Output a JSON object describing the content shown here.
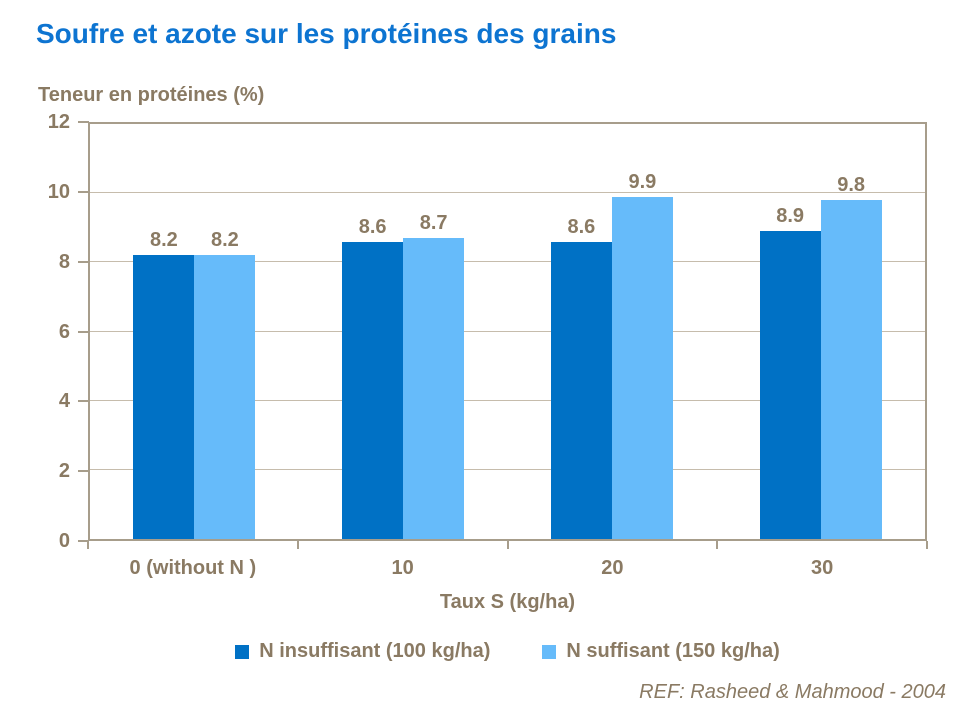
{
  "title": "Soufre et azote sur les protéines des grains",
  "footer": "REF: Rasheed & Mahmood - 2004",
  "colors": {
    "title": "#0d74d1",
    "text": "#8a7a63",
    "grid": "#c6bcac",
    "axis": "#a79d8b",
    "series_dark_blue": "#0071c5",
    "series_light_blue": "#66bbfa",
    "background": "#ffffff"
  },
  "chart_data": {
    "type": "bar",
    "title": "Soufre et azote sur les protéines des grains",
    "ylabel": "Teneur en protéines (%)",
    "xlabel": "Taux S (kg/ha)",
    "categories": [
      "0 (without N )",
      "10",
      "20",
      "30"
    ],
    "series": [
      {
        "name": "N insuffisant (100 kg/ha)",
        "color": "#0071c5",
        "values": [
          8.2,
          8.6,
          8.6,
          8.9
        ]
      },
      {
        "name": "N suffisant (150 kg/ha)",
        "color": "#66bbfa",
        "values": [
          8.2,
          8.7,
          9.9,
          9.8
        ]
      }
    ],
    "ylim": [
      0,
      12
    ],
    "ytick_step": 2,
    "yticks": [
      0,
      2,
      4,
      6,
      8,
      10,
      12
    ],
    "grid": true,
    "data_labels": true,
    "legend_position": "bottom"
  }
}
